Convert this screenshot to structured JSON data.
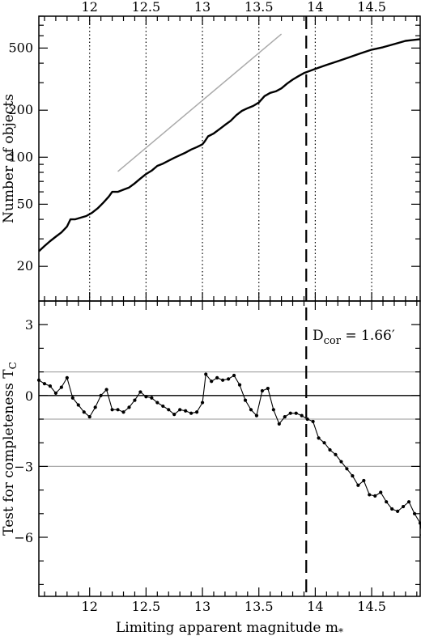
{
  "chart_data": [
    {
      "type": "line",
      "panel": "top",
      "ylabel": "Number of objects",
      "yscale": "log",
      "xlim": [
        11.55,
        14.93
      ],
      "ylim": [
        12,
        800
      ],
      "x_ticks": [
        "12",
        "12.5",
        "13",
        "13.5",
        "14",
        "14.5"
      ],
      "y_ticks": [
        {
          "value": 20,
          "label": "20"
        },
        {
          "value": 50,
          "label": "50"
        },
        {
          "value": 100,
          "label": "100"
        },
        {
          "value": 200,
          "label": "200"
        },
        {
          "value": 500,
          "label": "500"
        }
      ],
      "vertical_dotted_lines": [
        12,
        12.5,
        13,
        13.5,
        14,
        14.5
      ],
      "series": [
        {
          "role": "cumulative-counts",
          "points": [
            [
              11.55,
              25
            ],
            [
              11.6,
              27
            ],
            [
              11.65,
              29
            ],
            [
              11.7,
              31
            ],
            [
              11.75,
              33
            ],
            [
              11.8,
              36
            ],
            [
              11.83,
              40
            ],
            [
              11.87,
              40
            ],
            [
              11.92,
              41
            ],
            [
              11.97,
              42
            ],
            [
              12.02,
              44
            ],
            [
              12.07,
              47
            ],
            [
              12.12,
              51
            ],
            [
              12.17,
              56
            ],
            [
              12.2,
              60
            ],
            [
              12.25,
              60
            ],
            [
              12.3,
              62
            ],
            [
              12.35,
              64
            ],
            [
              12.4,
              68
            ],
            [
              12.45,
              73
            ],
            [
              12.5,
              78
            ],
            [
              12.55,
              82
            ],
            [
              12.6,
              88
            ],
            [
              12.65,
              91
            ],
            [
              12.7,
              95
            ],
            [
              12.75,
              99
            ],
            [
              12.8,
              103
            ],
            [
              12.85,
              107
            ],
            [
              12.9,
              112
            ],
            [
              12.95,
              116
            ],
            [
              13.0,
              121
            ],
            [
              13.02,
              126
            ],
            [
              13.05,
              136
            ],
            [
              13.1,
              142
            ],
            [
              13.15,
              151
            ],
            [
              13.2,
              161
            ],
            [
              13.25,
              171
            ],
            [
              13.3,
              186
            ],
            [
              13.35,
              198
            ],
            [
              13.4,
              206
            ],
            [
              13.45,
              213
            ],
            [
              13.5,
              224
            ],
            [
              13.55,
              246
            ],
            [
              13.6,
              258
            ],
            [
              13.65,
              264
            ],
            [
              13.7,
              276
            ],
            [
              13.75,
              296
            ],
            [
              13.8,
              314
            ],
            [
              13.85,
              330
            ],
            [
              13.9,
              346
            ],
            [
              14.0,
              368
            ],
            [
              14.1,
              390
            ],
            [
              14.2,
              412
            ],
            [
              14.3,
              436
            ],
            [
              14.4,
              462
            ],
            [
              14.5,
              488
            ],
            [
              14.6,
              506
            ],
            [
              14.7,
              530
            ],
            [
              14.8,
              556
            ],
            [
              14.93,
              570
            ]
          ]
        },
        {
          "role": "reference-slope",
          "points": [
            [
              12.25,
              81
            ],
            [
              13.7,
              615
            ]
          ]
        }
      ]
    },
    {
      "type": "line",
      "panel": "bottom",
      "xlabel": "Limiting apparent magnitude m*",
      "ylabel": "Test for completeness T_C",
      "xlim": [
        11.55,
        14.93
      ],
      "ylim": [
        -8.5,
        4
      ],
      "x_ticks": [
        "12",
        "12.5",
        "13",
        "13.5",
        "14",
        "14.5"
      ],
      "y_ticks": [
        {
          "value": 3,
          "label": "3"
        },
        {
          "value": 0,
          "label": "0"
        },
        {
          "value": -3,
          "label": "−3"
        },
        {
          "value": -6,
          "label": "−6"
        }
      ],
      "horizontal_lines": [
        1,
        0,
        -1,
        -3
      ],
      "vertical_dashed_line_x": 13.92,
      "annotation": {
        "main": "D",
        "subscript": "cor",
        "rest": " = 1.66′"
      },
      "series": [
        {
          "role": "completeness-test",
          "points": [
            [
              11.55,
              0.65
            ],
            [
              11.6,
              0.5
            ],
            [
              11.65,
              0.4
            ],
            [
              11.7,
              0.1
            ],
            [
              11.75,
              0.35
            ],
            [
              11.8,
              0.75
            ],
            [
              11.85,
              -0.1
            ],
            [
              11.9,
              -0.4
            ],
            [
              11.95,
              -0.7
            ],
            [
              12.0,
              -0.9
            ],
            [
              12.05,
              -0.5
            ],
            [
              12.1,
              0.0
            ],
            [
              12.15,
              0.25
            ],
            [
              12.2,
              -0.6
            ],
            [
              12.25,
              -0.6
            ],
            [
              12.3,
              -0.7
            ],
            [
              12.35,
              -0.5
            ],
            [
              12.4,
              -0.2
            ],
            [
              12.45,
              0.15
            ],
            [
              12.5,
              -0.05
            ],
            [
              12.55,
              -0.1
            ],
            [
              12.6,
              -0.3
            ],
            [
              12.65,
              -0.45
            ],
            [
              12.7,
              -0.6
            ],
            [
              12.75,
              -0.8
            ],
            [
              12.8,
              -0.6
            ],
            [
              12.85,
              -0.65
            ],
            [
              12.9,
              -0.75
            ],
            [
              12.95,
              -0.7
            ],
            [
              13.0,
              -0.3
            ],
            [
              13.03,
              0.9
            ],
            [
              13.08,
              0.6
            ],
            [
              13.13,
              0.75
            ],
            [
              13.18,
              0.65
            ],
            [
              13.23,
              0.7
            ],
            [
              13.28,
              0.85
            ],
            [
              13.33,
              0.45
            ],
            [
              13.38,
              -0.2
            ],
            [
              13.43,
              -0.6
            ],
            [
              13.48,
              -0.85
            ],
            [
              13.53,
              0.2
            ],
            [
              13.58,
              0.3
            ],
            [
              13.63,
              -0.6
            ],
            [
              13.68,
              -1.2
            ],
            [
              13.73,
              -0.9
            ],
            [
              13.78,
              -0.75
            ],
            [
              13.83,
              -0.75
            ],
            [
              13.88,
              -0.85
            ],
            [
              13.93,
              -1.0
            ],
            [
              13.98,
              -1.1
            ],
            [
              14.03,
              -1.8
            ],
            [
              14.08,
              -2.0
            ],
            [
              14.13,
              -2.3
            ],
            [
              14.18,
              -2.5
            ],
            [
              14.23,
              -2.8
            ],
            [
              14.28,
              -3.1
            ],
            [
              14.33,
              -3.4
            ],
            [
              14.38,
              -3.8
            ],
            [
              14.43,
              -3.6
            ],
            [
              14.48,
              -4.2
            ],
            [
              14.53,
              -4.25
            ],
            [
              14.58,
              -4.1
            ],
            [
              14.63,
              -4.5
            ],
            [
              14.68,
              -4.8
            ],
            [
              14.73,
              -4.9
            ],
            [
              14.78,
              -4.7
            ],
            [
              14.83,
              -4.5
            ],
            [
              14.88,
              -5.0
            ],
            [
              14.93,
              -5.4
            ],
            [
              14.95,
              -5.9
            ],
            [
              14.97,
              -6.2
            ]
          ]
        }
      ]
    }
  ]
}
